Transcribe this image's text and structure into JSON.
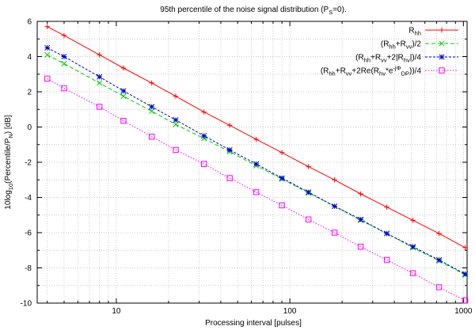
{
  "chart_data": {
    "type": "line",
    "title": "95th percentile of the noise signal distribution (P_S=0).",
    "xlabel": "Processing interval [pulses]",
    "ylabel": "10log10(Percentile/P_N) [dB]",
    "xscale": "log",
    "xlim": [
      3.5,
      1050
    ],
    "ylim": [
      -10,
      6
    ],
    "xticks": [
      10,
      100,
      1000
    ],
    "xtick_labels": [
      "10",
      "100",
      "1000"
    ],
    "yticks": [
      -10,
      -8,
      -6,
      -4,
      -2,
      0,
      2,
      4,
      6
    ],
    "ytick_labels": [
      "-10",
      "-8",
      "-6",
      "-4",
      "-2",
      "0",
      "2",
      "4",
      "6"
    ],
    "grid": true,
    "legend_position": "top-right",
    "x": [
      4,
      5,
      8,
      11,
      16,
      22,
      32,
      45,
      64,
      90,
      128,
      181,
      256,
      362,
      512,
      724,
      1024
    ],
    "series": [
      {
        "name": "R_hh",
        "color": "#ff0000",
        "marker": "plus",
        "dash": "solid",
        "values": [
          5.7,
          5.2,
          4.1,
          3.35,
          2.5,
          1.75,
          0.85,
          0.1,
          -0.7,
          -1.45,
          -2.25,
          -3.0,
          -3.8,
          -4.55,
          -5.3,
          -6.05,
          -6.85
        ]
      },
      {
        "name": "(R_hh+R_vv)/2",
        "color": "#00cc00",
        "marker": "x",
        "dash": "dashed",
        "values": [
          4.1,
          3.6,
          2.5,
          1.75,
          0.9,
          0.15,
          -0.65,
          -1.4,
          -2.2,
          -2.95,
          -3.75,
          -4.5,
          -5.3,
          -6.05,
          -6.85,
          -7.6,
          -8.4
        ]
      },
      {
        "name": "(R_hh+R_vv+2|R_hv|)/4",
        "color": "#0000cc",
        "marker": "star",
        "dash": "short-dashed",
        "values": [
          4.5,
          4.0,
          2.85,
          2.05,
          1.15,
          0.4,
          -0.5,
          -1.3,
          -2.1,
          -2.9,
          -3.7,
          -4.5,
          -5.25,
          -6.05,
          -6.8,
          -7.55,
          -8.35
        ]
      },
      {
        "name": "(R_hh+R_vv+2Re(R_hv*e^-jΦ_DP))/4",
        "color": "#ff00ff",
        "marker": "square",
        "dash": "dotted",
        "values": [
          2.75,
          2.2,
          1.15,
          0.35,
          -0.55,
          -1.3,
          -2.1,
          -2.9,
          -3.7,
          -4.45,
          -5.25,
          -6.0,
          -6.8,
          -7.55,
          -8.3,
          -9.1,
          -9.85
        ]
      }
    ]
  }
}
